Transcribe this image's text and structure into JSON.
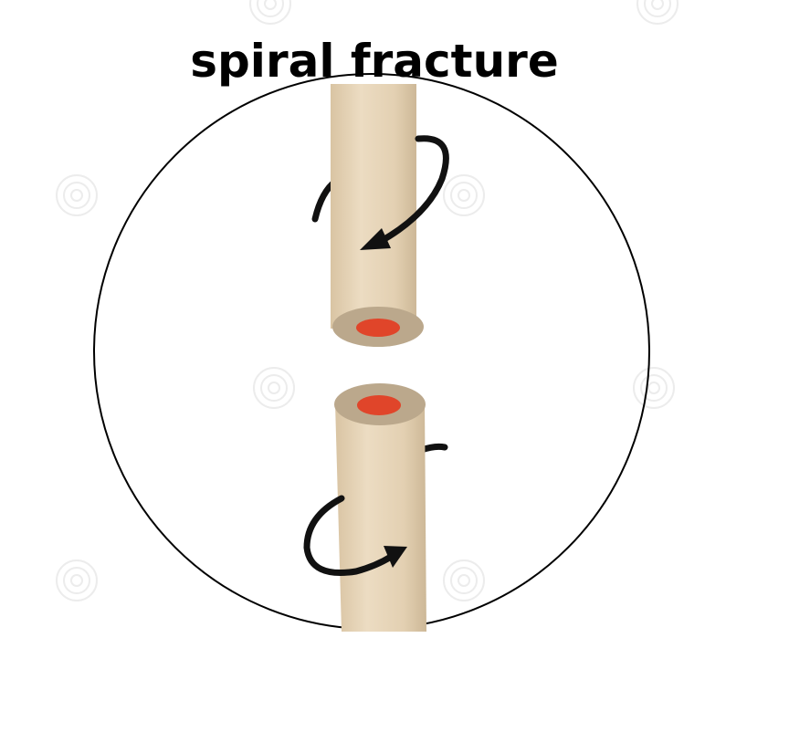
{
  "title": "spiral fracture",
  "colors": {
    "background": "#ffffff",
    "circle_outline": "#000000",
    "bone_shaft": "#e6d3b6",
    "bone_shaft_shadow": "#cdb897",
    "bone_shaft_highlight": "#f3e7d2",
    "cortex_ring": "#b9a58a",
    "marrow": "#e0452a",
    "arrow": "#111111",
    "watermark": "#e9e9e9"
  },
  "icons": {
    "upper_rotation": "curved-arrow-counterclockwise-icon",
    "lower_rotation": "curved-arrow-clockwise-icon",
    "watermark": "spiral-watermark-icon"
  }
}
